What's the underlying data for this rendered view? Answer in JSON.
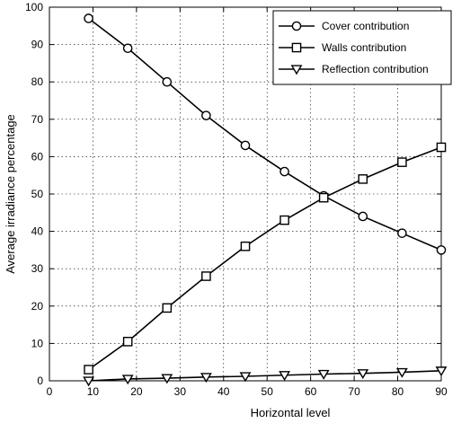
{
  "chart_data": {
    "type": "line",
    "xlabel": "Horizontal level",
    "ylabel": "Average irradiance percentage",
    "xlim": [
      0,
      90
    ],
    "ylim": [
      0,
      100
    ],
    "xticks": [
      "0",
      "10",
      "20",
      "30",
      "40",
      "50",
      "60",
      "70",
      "80",
      "90"
    ],
    "yticks": [
      "0",
      "10",
      "20",
      "30",
      "40",
      "50",
      "60",
      "70",
      "80",
      "90",
      "100"
    ],
    "grid": true,
    "legend_position": "top-right",
    "series": [
      {
        "name": "Cover contribution",
        "marker": "circle",
        "x": [
          9,
          18,
          27,
          36,
          45,
          54,
          63,
          72,
          81,
          90
        ],
        "values": [
          97,
          89,
          80,
          71,
          63,
          56,
          49.5,
          44,
          39.5,
          35
        ]
      },
      {
        "name": "Walls contribution",
        "marker": "square",
        "x": [
          9,
          18,
          27,
          36,
          45,
          54,
          63,
          72,
          81,
          90
        ],
        "values": [
          3,
          10.5,
          19.5,
          28,
          36,
          43,
          49,
          54,
          58.5,
          62.5
        ]
      },
      {
        "name": "Reflection contribution",
        "marker": "triangle-down",
        "x": [
          9,
          18,
          27,
          36,
          45,
          54,
          63,
          72,
          81,
          90
        ],
        "values": [
          0,
          0.5,
          0.7,
          1,
          1.2,
          1.5,
          1.8,
          2,
          2.3,
          2.7
        ]
      }
    ]
  }
}
